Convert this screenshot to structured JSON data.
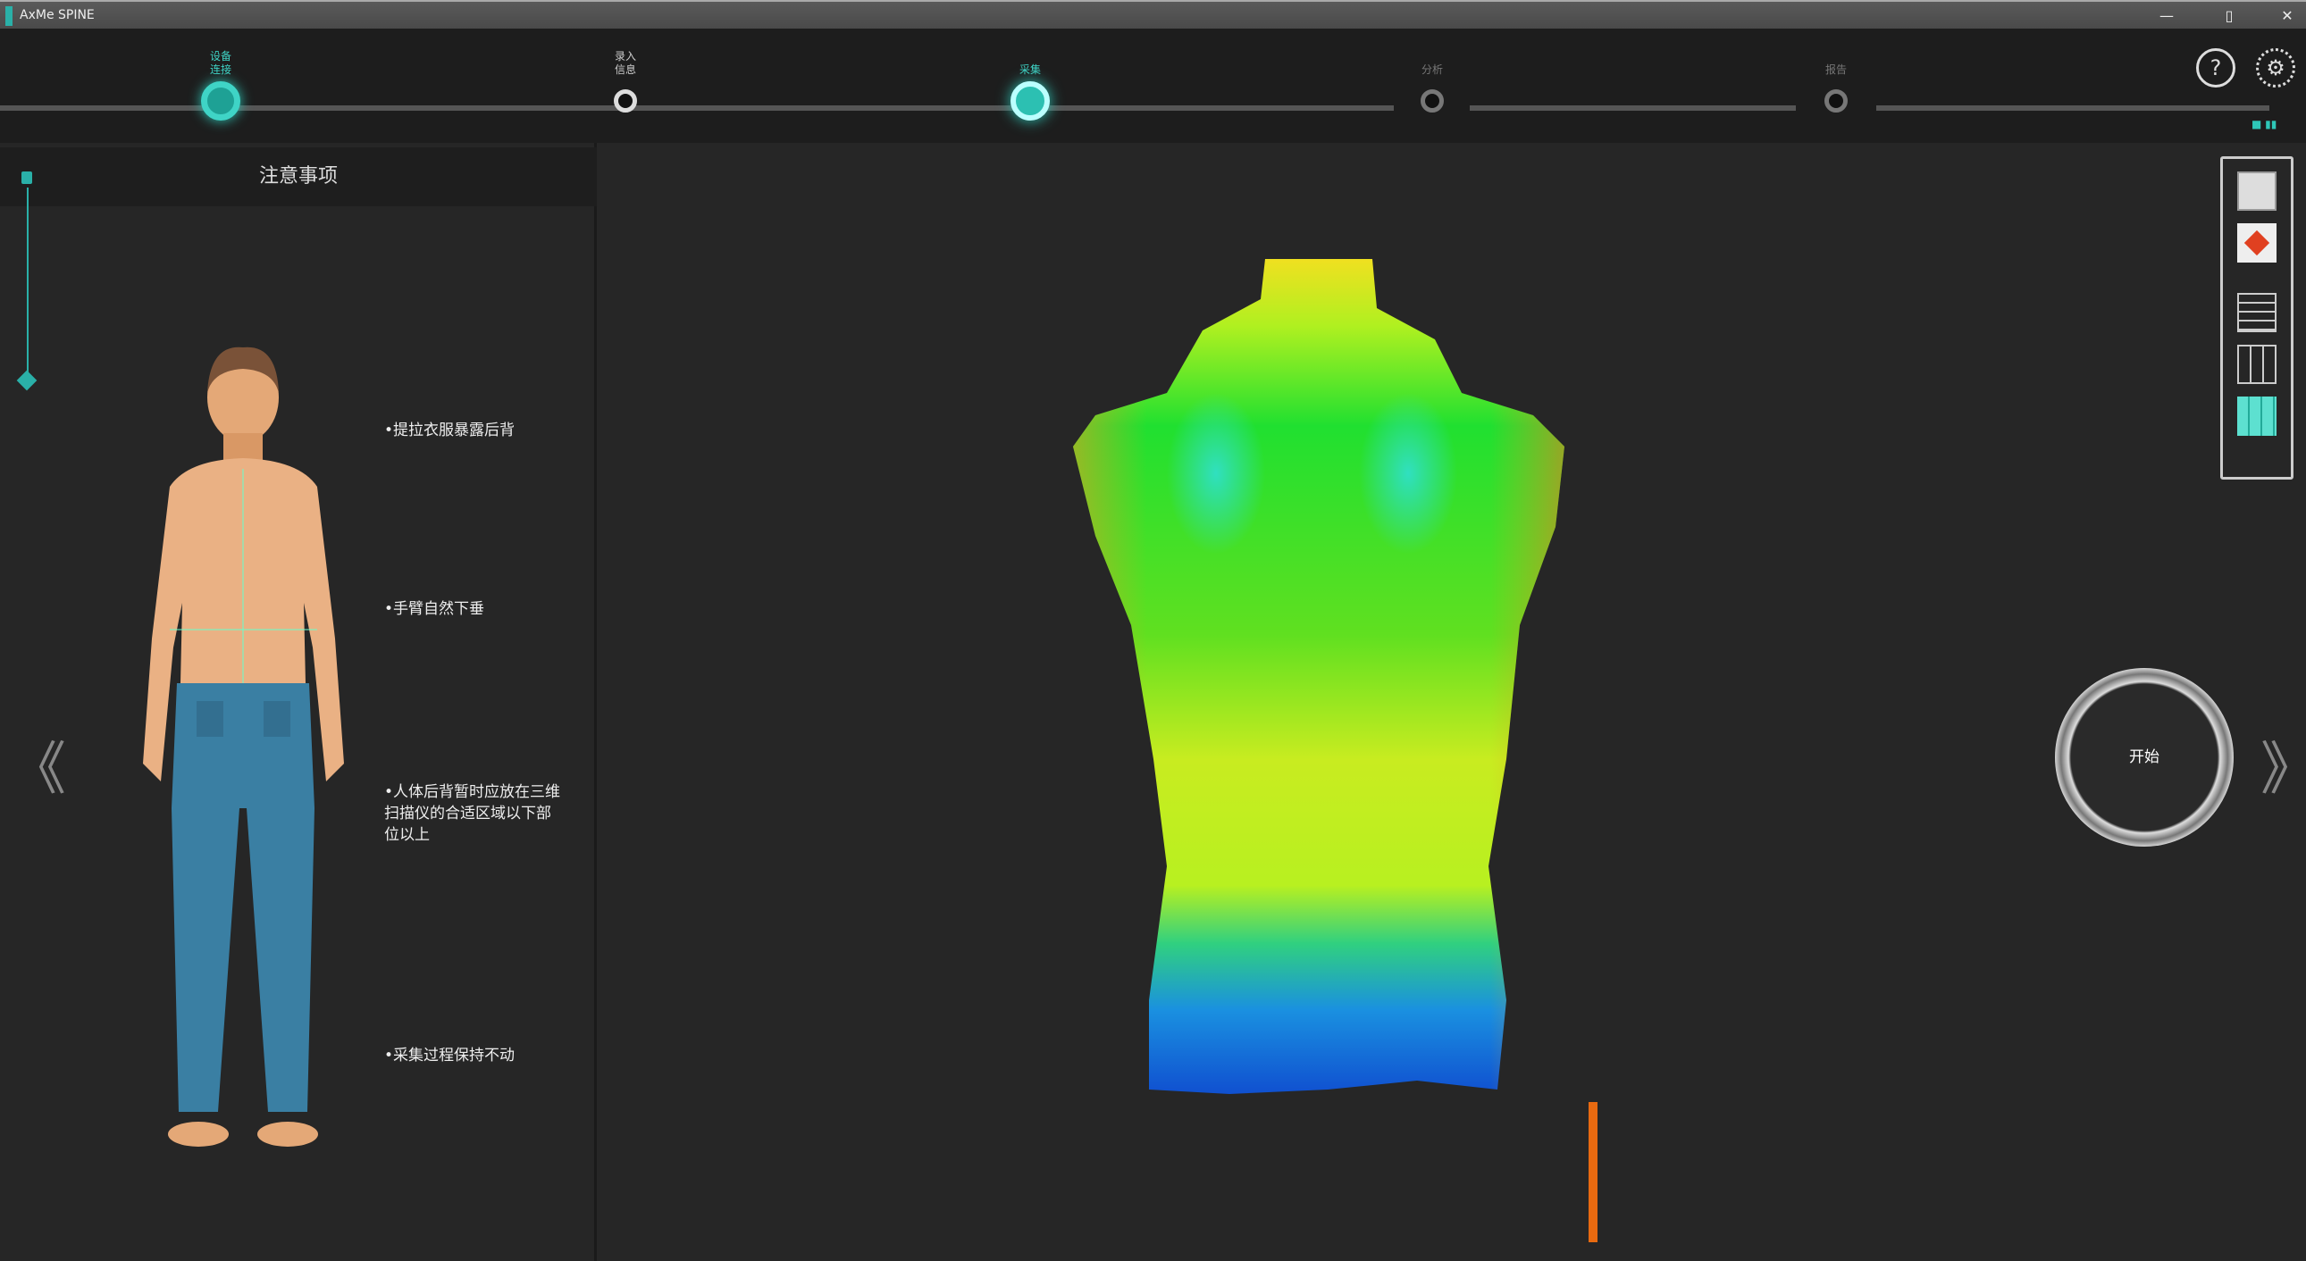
{
  "window": {
    "title": "AxMe SPINE",
    "minimize": "—",
    "maximize": "▯",
    "close": "✕"
  },
  "steps": [
    {
      "line1": "设备",
      "line2": "连接",
      "state": "done"
    },
    {
      "line1": "录入",
      "line2": "信息",
      "state": "done"
    },
    {
      "line1": "采集",
      "line2": "",
      "state": "current"
    },
    {
      "line1": "分析",
      "line2": "",
      "state": "pending"
    },
    {
      "line1": "报告",
      "line2": "",
      "state": "pending"
    }
  ],
  "header_icons": {
    "help": "?",
    "settings": "⚙"
  },
  "status_indicator": "■ ▮▮",
  "left_panel": {
    "title": "注意事项",
    "tips": [
      "•提拉衣服暴露后背",
      "•手臂自然下垂",
      "•人体后背暂时应放在三维扫描仪的合适区域以下部位以上",
      "•采集过程保持不动"
    ]
  },
  "toolbar": [
    "spine-view-icon",
    "marker-icon",
    "grid-fine-icon",
    "grid-icon",
    "grid-filled-icon"
  ],
  "start_button": "开始",
  "nav": {
    "prev": "《",
    "next": "》"
  },
  "colors": {
    "accent": "#2ec7b8",
    "background": "#262626",
    "scan_high": "#f0e020",
    "scan_mid": "#20e020",
    "scan_low": "#1060e0"
  }
}
